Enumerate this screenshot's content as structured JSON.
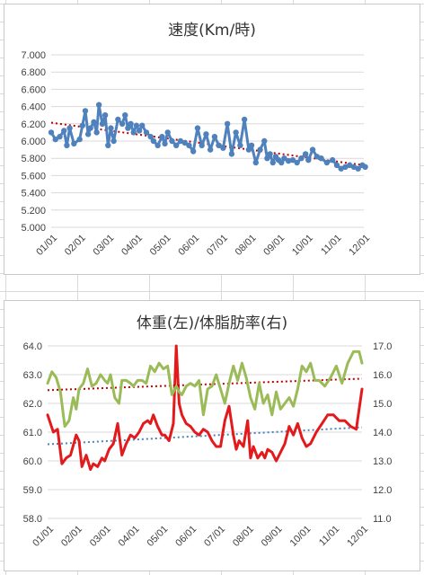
{
  "chart_data": [
    {
      "type": "line",
      "title": "速度(Km/時)",
      "xlabel": "",
      "ylabel": "",
      "categories": [
        "01/01",
        "02/01",
        "03/01",
        "04/01",
        "05/01",
        "06/01",
        "07/01",
        "08/01",
        "09/01",
        "10/01",
        "11/01",
        "12/01"
      ],
      "yticks": [
        "5.000",
        "5.200",
        "5.400",
        "5.600",
        "5.800",
        "6.000",
        "6.200",
        "6.400",
        "6.600",
        "6.800",
        "7.000"
      ],
      "ylim": [
        5.0,
        7.0
      ],
      "grid": true,
      "legend": "none",
      "series": [
        {
          "color": "#4f81bd",
          "trendline": true,
          "trend_color": "#c00000",
          "x": [
            0.0,
            0.15,
            0.3,
            0.45,
            0.55,
            0.65,
            0.8,
            1.0,
            1.1,
            1.2,
            1.3,
            1.38,
            1.5,
            1.6,
            1.68,
            1.8,
            1.9,
            2.0,
            2.1,
            2.2,
            2.35,
            2.5,
            2.6,
            2.7,
            2.8,
            2.9,
            3.0,
            3.1,
            3.2,
            3.35,
            3.5,
            3.6,
            3.75,
            3.9,
            4.0,
            4.1,
            4.25,
            4.4,
            4.55,
            4.7,
            4.85,
            5.0,
            5.15,
            5.3,
            5.45,
            5.6,
            5.75,
            5.9,
            6.05,
            6.2,
            6.35,
            6.5,
            6.65,
            6.8,
            6.95,
            7.05,
            7.2,
            7.35,
            7.5,
            7.6,
            7.7,
            7.8,
            7.9,
            8.0,
            8.1,
            8.2,
            8.35,
            8.5,
            8.65,
            8.8,
            8.95,
            9.05,
            9.2,
            9.35,
            9.5,
            9.7,
            9.9,
            10.05,
            10.2,
            10.35,
            10.5,
            10.65,
            10.8,
            10.95,
            11.05
          ],
          "values": [
            6.1,
            6.02,
            6.05,
            6.12,
            5.95,
            6.15,
            5.97,
            6.02,
            6.18,
            6.35,
            6.08,
            6.15,
            6.22,
            6.1,
            6.42,
            6.2,
            6.3,
            5.95,
            6.15,
            6.0,
            6.25,
            6.2,
            6.3,
            6.15,
            6.2,
            6.1,
            6.18,
            6.12,
            6.18,
            6.1,
            6.05,
            6.0,
            5.95,
            6.05,
            5.97,
            6.1,
            6.0,
            5.95,
            6.0,
            5.98,
            5.95,
            5.88,
            6.15,
            5.95,
            6.08,
            5.9,
            6.05,
            5.95,
            5.92,
            6.2,
            5.85,
            6.1,
            5.95,
            6.25,
            5.9,
            5.95,
            5.75,
            5.9,
            6.0,
            5.8,
            5.85,
            5.75,
            5.82,
            5.78,
            5.75,
            5.8,
            5.77,
            5.78,
            5.75,
            5.8,
            5.85,
            5.78,
            5.9,
            5.82,
            5.8,
            5.75,
            5.78,
            5.72,
            5.68,
            5.7,
            5.72,
            5.7,
            5.68,
            5.72,
            5.7
          ]
        }
      ]
    },
    {
      "type": "line",
      "title": "体重(左)/体脂肪率(右)",
      "xlabel": "",
      "ylabel": "",
      "categories": [
        "01/01",
        "02/01",
        "03/01",
        "04/01",
        "05/01",
        "06/01",
        "07/01",
        "08/01",
        "09/01",
        "10/01",
        "11/01",
        "12/01"
      ],
      "yticks_left": [
        "58.0",
        "59.0",
        "60.0",
        "61.0",
        "62.0",
        "63.0",
        "64.0"
      ],
      "yticks_right": [
        "11.0",
        "12.0",
        "13.0",
        "14.0",
        "15.0",
        "16.0",
        "17.0"
      ],
      "ylim_left": [
        58.0,
        64.0
      ],
      "ylim_right": [
        11.0,
        17.0
      ],
      "grid": true,
      "legend": "none",
      "series": [
        {
          "axis": "left",
          "color": "#e31a1c",
          "trendline": true,
          "trend_color": "#4f81bd",
          "x": [
            0.0,
            0.2,
            0.35,
            0.5,
            0.65,
            0.8,
            1.0,
            1.1,
            1.2,
            1.35,
            1.5,
            1.6,
            1.75,
            1.9,
            2.0,
            2.15,
            2.3,
            2.45,
            2.6,
            2.75,
            2.9,
            3.05,
            3.2,
            3.35,
            3.5,
            3.6,
            3.7,
            3.85,
            4.0,
            4.1,
            4.25,
            4.4,
            4.5,
            4.6,
            4.7,
            4.85,
            5.0,
            5.15,
            5.3,
            5.45,
            5.6,
            5.75,
            5.9,
            6.05,
            6.2,
            6.35,
            6.5,
            6.6,
            6.7,
            6.85,
            7.0,
            7.1,
            7.2,
            7.35,
            7.5,
            7.6,
            7.7,
            7.85,
            8.0,
            8.15,
            8.3,
            8.45,
            8.6,
            8.75,
            8.9,
            9.05,
            9.2,
            9.4,
            9.6,
            9.8,
            10.0,
            10.2,
            10.4,
            10.6,
            10.8,
            11.0
          ],
          "values": [
            61.6,
            61.0,
            61.1,
            59.9,
            60.1,
            60.2,
            60.9,
            60.7,
            59.8,
            60.2,
            59.7,
            59.9,
            59.8,
            60.1,
            60.0,
            60.4,
            60.6,
            61.3,
            60.2,
            60.6,
            60.9,
            60.8,
            61.0,
            61.3,
            61.4,
            61.3,
            61.6,
            61.2,
            60.9,
            60.9,
            60.7,
            61.3,
            64.0,
            62.0,
            61.6,
            61.3,
            61.2,
            61.0,
            60.9,
            61.1,
            61.0,
            60.7,
            60.5,
            60.5,
            61.4,
            61.9,
            60.9,
            60.4,
            60.7,
            60.5,
            61.4,
            60.1,
            60.5,
            60.1,
            60.3,
            60.1,
            60.4,
            60.3,
            60.0,
            60.3,
            60.6,
            61.2,
            60.9,
            61.3,
            60.8,
            60.5,
            60.6,
            61.0,
            61.3,
            61.6,
            61.6,
            61.4,
            61.4,
            61.2,
            61.1,
            62.5
          ]
        },
        {
          "axis": "right",
          "color": "#9bbb59",
          "trendline": true,
          "trend_color": "#c00000",
          "x": [
            0.0,
            0.15,
            0.3,
            0.45,
            0.6,
            0.75,
            0.9,
            1.0,
            1.1,
            1.25,
            1.4,
            1.55,
            1.7,
            1.85,
            2.0,
            2.1,
            2.2,
            2.35,
            2.5,
            2.6,
            2.75,
            2.9,
            3.0,
            3.15,
            3.3,
            3.45,
            3.6,
            3.75,
            3.9,
            4.05,
            4.2,
            4.35,
            4.5,
            4.6,
            4.7,
            4.85,
            5.0,
            5.15,
            5.3,
            5.45,
            5.6,
            5.75,
            5.9,
            6.05,
            6.2,
            6.35,
            6.5,
            6.65,
            6.8,
            6.95,
            7.1,
            7.25,
            7.4,
            7.55,
            7.7,
            7.85,
            8.0,
            8.15,
            8.3,
            8.45,
            8.6,
            8.75,
            8.9,
            9.05,
            9.2,
            9.35,
            9.5,
            9.7,
            9.9,
            10.1,
            10.3,
            10.5,
            10.7,
            10.9,
            11.0
          ],
          "values": [
            15.7,
            16.1,
            15.9,
            15.4,
            14.2,
            14.4,
            15.2,
            14.8,
            15.5,
            15.7,
            16.2,
            15.6,
            15.7,
            16.0,
            15.8,
            15.7,
            16.0,
            15.2,
            15.0,
            15.8,
            15.8,
            15.7,
            15.6,
            15.8,
            15.8,
            15.7,
            16.3,
            16.1,
            16.4,
            16.2,
            16.3,
            15.3,
            15.6,
            15.4,
            15.3,
            15.6,
            15.7,
            15.6,
            15.8,
            14.6,
            15.5,
            15.6,
            16.0,
            15.5,
            15.0,
            15.7,
            16.3,
            15.8,
            16.4,
            15.9,
            15.2,
            14.8,
            15.7,
            15.0,
            15.3,
            14.6,
            15.4,
            14.8,
            15.0,
            15.2,
            14.9,
            15.5,
            16.3,
            16.1,
            16.4,
            15.8,
            15.8,
            15.6,
            15.9,
            16.3,
            15.7,
            16.4,
            16.8,
            16.8,
            16.4
          ]
        }
      ]
    }
  ]
}
